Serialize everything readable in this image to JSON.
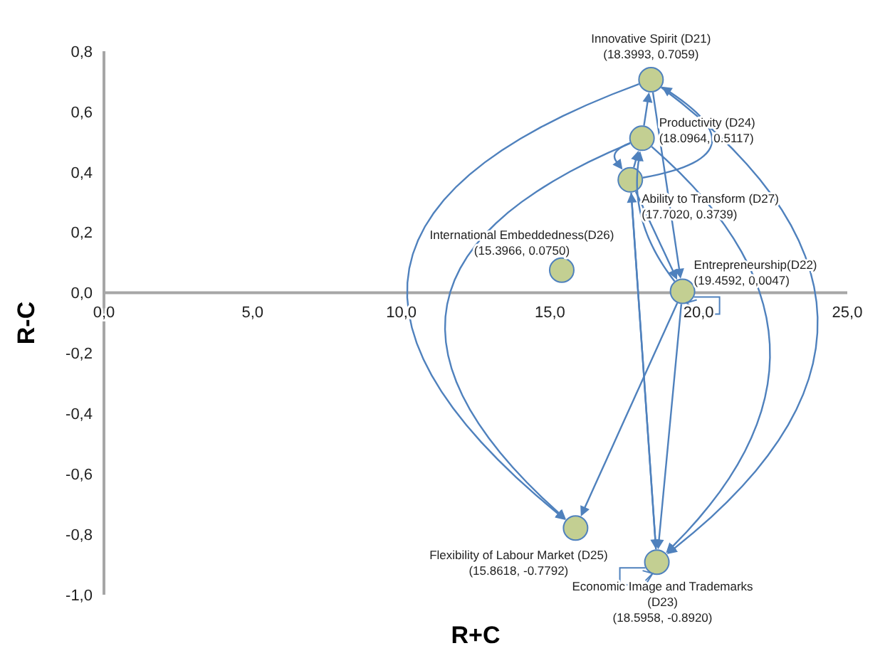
{
  "chart_data": {
    "type": "scatter",
    "xlabel": "R+C",
    "ylabel": "R-C",
    "x": [
      18.3993,
      18.0964,
      17.702,
      15.3966,
      19.4592,
      15.8618,
      18.5958
    ],
    "series": [
      {
        "color": "#c3cf92",
        "values": [
          0.7059,
          0.5117,
          0.3739,
          0.075,
          0.0047,
          -0.7792,
          -0.892
        ]
      }
    ],
    "marker": "circle",
    "xlim": [
      0,
      25
    ],
    "xticks": [
      {
        "value": 0,
        "label": "0,0"
      },
      {
        "value": 5,
        "label": "5,0"
      },
      {
        "value": 10,
        "label": "10,0"
      },
      {
        "value": 15,
        "label": "15,0"
      },
      {
        "value": 20,
        "label": "20,0"
      },
      {
        "value": 25,
        "label": "25,0"
      }
    ],
    "ylim": [
      -1,
      0.8
    ],
    "yticks": [
      {
        "value": -1,
        "label": "-1,0"
      },
      {
        "value": -0.8,
        "label": "-0,8"
      },
      {
        "value": -0.6,
        "label": "-0,6"
      },
      {
        "value": -0.4,
        "label": "-0,4"
      },
      {
        "value": -0.2,
        "label": "-0,2"
      },
      {
        "value": 0,
        "label": "0,0"
      },
      {
        "value": 0.2,
        "label": "0,2"
      },
      {
        "value": 0.4,
        "label": "0,4"
      },
      {
        "value": 0.6,
        "label": "0,6"
      },
      {
        "value": 0.8,
        "label": "0,8"
      }
    ],
    "annotations": [
      {
        "text": "Innovative Spirit (D21)\n(18.3993, 0.7059)",
        "x": 18.3993,
        "y": 0.7059
      },
      {
        "text": "Productivity (D24)\n(18.0964, 0.5117)",
        "x": 18.0964,
        "y": 0.5117
      },
      {
        "text": "Ability to Transform (D27)\n(17.7020, 0.3739)",
        "x": 17.702,
        "y": 0.3739
      },
      {
        "text": "International Embeddedness(D26)\n(15.3966, 0.0750)",
        "x": 15.3966,
        "y": 0.075
      },
      {
        "text": "Entrepreneurship(D22)\n(19.4592, 0,0047)",
        "x": 19.4592,
        "y": 0.0047
      },
      {
        "text": "Flexibility of Labour Market (D25)\n(15.8618, -0.7792)",
        "x": 15.8618,
        "y": -0.7792
      },
      {
        "text": "Economic Image and Trademarks\n(D23)\n(18.5958, -0.8920)",
        "x": 18.5958,
        "y": -0.892
      }
    ]
  }
}
